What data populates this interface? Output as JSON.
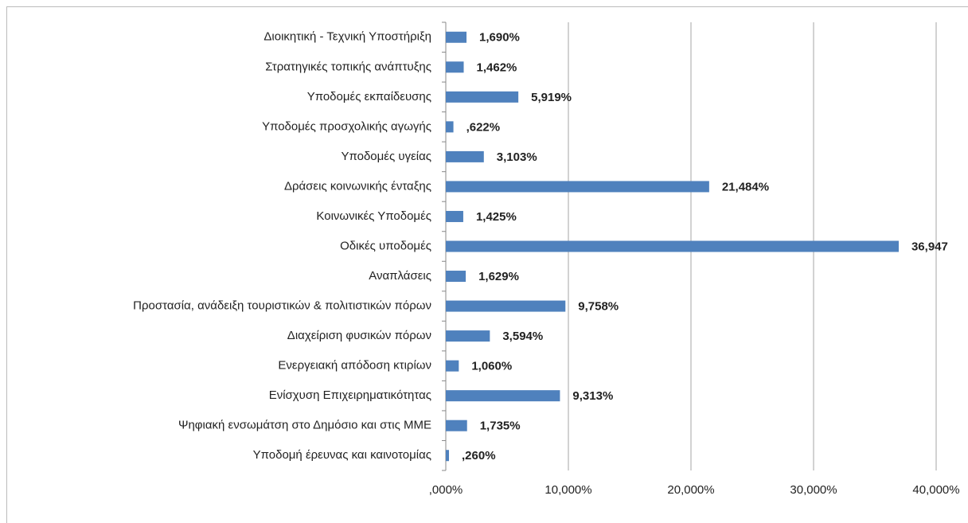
{
  "chart_data": {
    "type": "bar",
    "orientation": "horizontal",
    "color": "#4f81bd",
    "grid": true,
    "categories": [
      "Διοικητική - Τεχνική Υποστήριξη",
      "Στρατηγικές τοπικής ανάπτυξης",
      "Υποδομές εκπαίδευσης",
      "Υποδομές προσχολικής αγωγής",
      "Υποδομές υγείας",
      "Δράσεις κοινωνικής ένταξης",
      "Κοινωνικές Υποδομές",
      "Οδικές υποδομές",
      "Αναπλάσεις",
      "Προστασία, ανάδειξη τουριστικών & πολιτιστικών πόρων",
      "Διαχείριση φυσικών πόρων",
      "Ενεργειακή απόδοση κτιρίων",
      "Ενίσχυση Επιχειρηματικότητας",
      "Ψηφιακή ενσωμάτση στο Δημόσιο και στις ΜΜΕ",
      "Υποδομή έρευνας και καινοτομίας"
    ],
    "values": [
      1.69,
      1.462,
      5.919,
      0.622,
      3.103,
      21.484,
      1.425,
      36.947,
      1.629,
      9.758,
      3.594,
      1.06,
      9.313,
      1.735,
      0.26
    ],
    "value_labels": [
      "1,690%",
      "1,462%",
      "5,919%",
      ",622%",
      "3,103%",
      "21,484%",
      "1,425%",
      "36,947",
      "1,629%",
      "9,758%",
      "3,594%",
      "1,060%",
      "9,313%",
      "1,735%",
      ",260%"
    ],
    "xlim": [
      0,
      40
    ],
    "xticks": [
      {
        "value": 0,
        "label": ",000%"
      },
      {
        "value": 10,
        "label": "10,000%"
      },
      {
        "value": 20,
        "label": "20,000%"
      },
      {
        "value": 30,
        "label": "30,000%"
      },
      {
        "value": 40,
        "label": "40,000%"
      }
    ]
  }
}
